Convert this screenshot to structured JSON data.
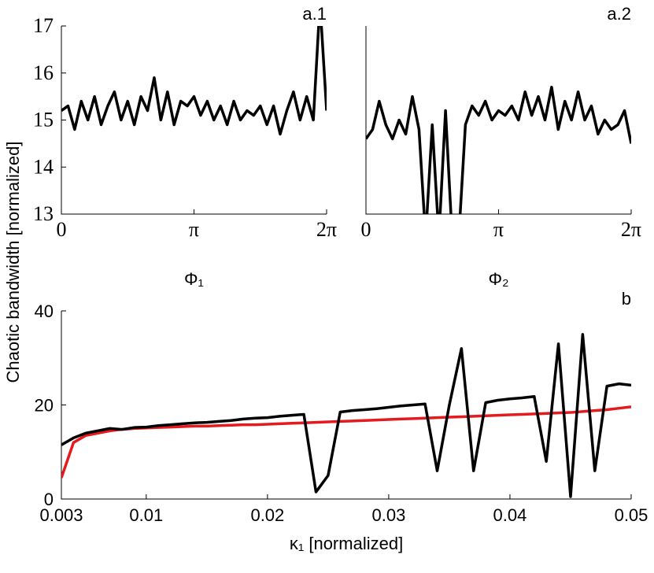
{
  "ylabel": "Chaotic bandwidth [normalized]",
  "chart_data": [
    {
      "type": "line",
      "title": "a.1",
      "xlabel": "Φ₁",
      "x": [
        0,
        0.1571,
        0.3142,
        0.4712,
        0.6283,
        0.7854,
        0.9425,
        1.0996,
        1.2566,
        1.4137,
        1.5708,
        1.7279,
        1.885,
        2.042,
        2.1991,
        2.3562,
        2.5133,
        2.6704,
        2.8274,
        2.9845,
        3.1416,
        3.2987,
        3.4558,
        3.6128,
        3.7699,
        3.927,
        4.0841,
        4.2412,
        4.3982,
        4.5553,
        4.7124,
        4.8695,
        5.0265,
        5.1836,
        5.3407,
        5.4978,
        5.6549,
        5.8119,
        5.969,
        6.1261,
        6.2832
      ],
      "series": [
        {
          "color": "#000000",
          "values": [
            15.2,
            15.3,
            14.8,
            15.4,
            15.0,
            15.5,
            14.9,
            15.3,
            15.6,
            15.0,
            15.4,
            14.9,
            15.5,
            15.2,
            15.9,
            15.0,
            15.6,
            14.9,
            15.4,
            15.3,
            15.5,
            15.1,
            15.4,
            15.0,
            15.3,
            14.9,
            15.4,
            15.0,
            15.2,
            15.1,
            15.3,
            14.9,
            15.3,
            14.7,
            15.2,
            15.6,
            15.0,
            15.5,
            15.0,
            17.5,
            15.2
          ]
        }
      ],
      "xlim": [
        0,
        6.2832
      ],
      "xticks": [
        0,
        {
          "value": 3.1416,
          "label": "π"
        },
        {
          "value": 6.2832,
          "label": "2π"
        }
      ],
      "ylim": [
        13,
        17
      ],
      "yticks": [
        13,
        14,
        15,
        16,
        17
      ]
    },
    {
      "type": "line",
      "title": "a.2",
      "xlabel": "Φ₂",
      "x": [
        0,
        0.1571,
        0.3142,
        0.4712,
        0.6283,
        0.7854,
        0.9425,
        1.0996,
        1.2566,
        1.4137,
        1.5708,
        1.7279,
        1.885,
        2.042,
        2.1991,
        2.3562,
        2.5133,
        2.6704,
        2.8274,
        2.9845,
        3.1416,
        3.2987,
        3.4558,
        3.6128,
        3.7699,
        3.927,
        4.0841,
        4.2412,
        4.3982,
        4.5553,
        4.7124,
        4.8695,
        5.0265,
        5.1836,
        5.3407,
        5.4978,
        5.6549,
        5.8119,
        5.969,
        6.1261,
        6.2832
      ],
      "series": [
        {
          "color": "#000000",
          "values": [
            14.6,
            14.8,
            15.4,
            14.9,
            14.6,
            15.0,
            14.7,
            15.5,
            14.8,
            12.5,
            14.9,
            12.5,
            15.2,
            12.5,
            12.5,
            14.9,
            15.3,
            15.1,
            15.4,
            15.0,
            15.2,
            15.1,
            15.3,
            15.0,
            15.6,
            15.1,
            15.5,
            15.0,
            15.7,
            14.8,
            15.4,
            15.0,
            15.6,
            15.0,
            15.3,
            14.7,
            15.0,
            14.8,
            14.9,
            15.2,
            14.5
          ]
        }
      ],
      "xlim": [
        0,
        6.2832
      ],
      "xticks": [
        0,
        {
          "value": 3.1416,
          "label": "π"
        },
        {
          "value": 6.2832,
          "label": "2π"
        }
      ],
      "ylim": [
        13,
        17
      ]
    },
    {
      "type": "line",
      "title": "b",
      "xlabel": "κ₁ [normalized]",
      "x": [
        0.003,
        0.004,
        0.005,
        0.006,
        0.007,
        0.008,
        0.009,
        0.01,
        0.011,
        0.012,
        0.013,
        0.014,
        0.015,
        0.016,
        0.017,
        0.018,
        0.019,
        0.02,
        0.021,
        0.022,
        0.023,
        0.024,
        0.025,
        0.026,
        0.027,
        0.028,
        0.029,
        0.03,
        0.031,
        0.032,
        0.033,
        0.034,
        0.035,
        0.036,
        0.037,
        0.038,
        0.039,
        0.04,
        0.041,
        0.042,
        0.043,
        0.044,
        0.045,
        0.046,
        0.047,
        0.048,
        0.049,
        0.05
      ],
      "series": [
        {
          "color": "#e41a1c",
          "values": [
            4.5,
            12,
            13.5,
            14,
            14.5,
            14.8,
            15,
            15.1,
            15.2,
            15.3,
            15.4,
            15.5,
            15.5,
            15.6,
            15.7,
            15.8,
            15.8,
            15.9,
            16,
            16.1,
            16.2,
            16.3,
            16.4,
            16.5,
            16.6,
            16.7,
            16.8,
            16.9,
            17,
            17.1,
            17.2,
            17.3,
            17.4,
            17.5,
            17.6,
            17.7,
            17.8,
            17.9,
            18,
            18.1,
            18.2,
            18.3,
            18.4,
            18.6,
            18.8,
            19,
            19.3,
            19.6
          ]
        },
        {
          "color": "#000000",
          "values": [
            11.5,
            13,
            14,
            14.5,
            15,
            14.8,
            15.2,
            15.3,
            15.6,
            15.8,
            16,
            16.2,
            16.3,
            16.5,
            16.7,
            17,
            17.2,
            17.3,
            17.6,
            17.8,
            18,
            1.5,
            5,
            18.5,
            18.8,
            19,
            19.2,
            19.5,
            19.8,
            20,
            20.2,
            6,
            20,
            32,
            6,
            20.5,
            21,
            21.3,
            21.5,
            21.8,
            8,
            33,
            0.5,
            35,
            6,
            24,
            24.5,
            24.2
          ]
        }
      ],
      "xlim": [
        0.003,
        0.05
      ],
      "xticks": [
        0.003,
        0.01,
        0.02,
        0.03,
        0.04,
        0.05
      ],
      "ylim": [
        0,
        40
      ],
      "yticks": [
        0,
        20,
        40
      ]
    }
  ]
}
